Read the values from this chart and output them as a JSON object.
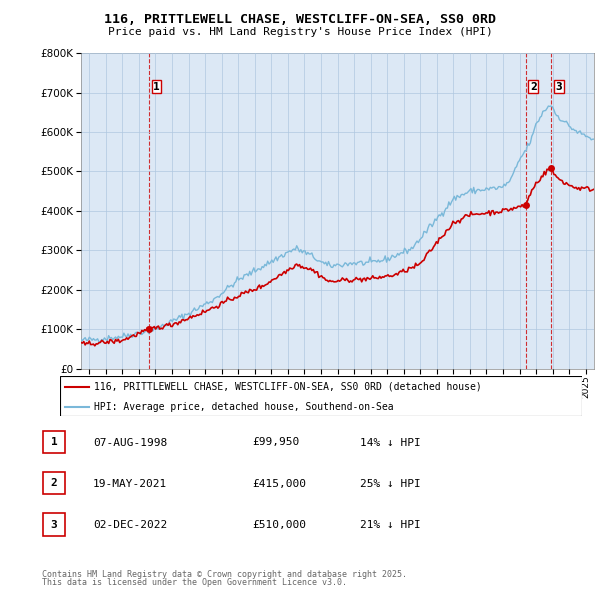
{
  "title_line1": "116, PRITTLEWELL CHASE, WESTCLIFF-ON-SEA, SS0 0RD",
  "title_line2": "Price paid vs. HM Land Registry's House Price Index (HPI)",
  "legend_entry1": "116, PRITTLEWELL CHASE, WESTCLIFF-ON-SEA, SS0 0RD (detached house)",
  "legend_entry2": "HPI: Average price, detached house, Southend-on-Sea",
  "footer_line1": "Contains HM Land Registry data © Crown copyright and database right 2025.",
  "footer_line2": "This data is licensed under the Open Government Licence v3.0.",
  "transactions": [
    {
      "label": "1",
      "date": "07-AUG-1998",
      "price": 99950,
      "hpi_pct": "14% ↓ HPI",
      "x": 1998.6
    },
    {
      "label": "2",
      "date": "19-MAY-2021",
      "price": 415000,
      "hpi_pct": "25% ↓ HPI",
      "x": 2021.38
    },
    {
      "label": "3",
      "date": "02-DEC-2022",
      "price": 510000,
      "hpi_pct": "21% ↓ HPI",
      "x": 2022.92
    }
  ],
  "red_line_color": "#cc0000",
  "blue_line_color": "#7ab8d9",
  "vline_color": "#cc0000",
  "chart_bg_color": "#dce8f5",
  "ylim": [
    0,
    800000
  ],
  "yticks": [
    0,
    100000,
    200000,
    300000,
    400000,
    500000,
    600000,
    700000,
    800000
  ],
  "xlim_start": 1994.5,
  "xlim_end": 2025.5,
  "background_color": "#ffffff",
  "grid_color": "#b0c8e0"
}
